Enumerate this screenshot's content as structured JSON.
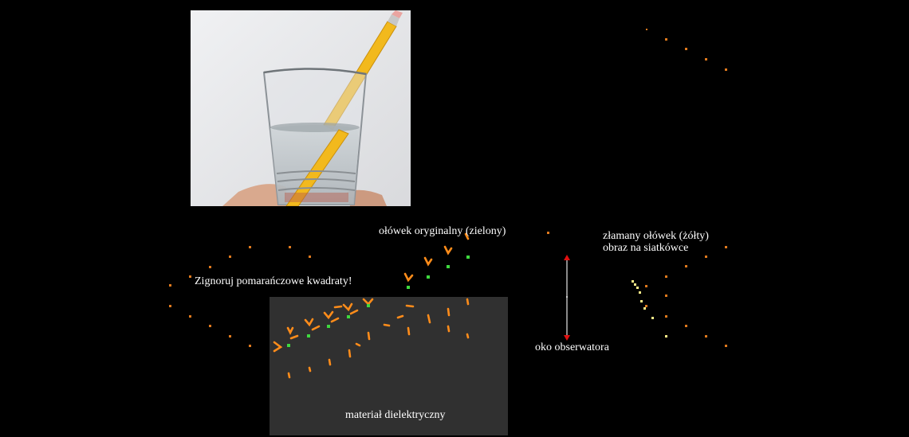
{
  "labels": {
    "original_pencil": "ołówek oryginalny (zielony)",
    "broken_pencil_line1": "złamany ołówek (żółty)",
    "broken_pencil_line2": "obraz na siatkówce",
    "ignore_squares": "Zignoruj pomarańczowe kwadraty!",
    "observer_eye": "oko obserwatora",
    "dielectric": "materiał dielektryczny"
  },
  "colors": {
    "background": "#000000",
    "slab": "#303030",
    "ray_arrow": "#ff8c1a",
    "original_pencil_points": "#3fd93f",
    "image_points": "#ffee88",
    "marker_square": "#e07a1e",
    "eye_axis": "#888888",
    "eye_arrow": "#e01010"
  },
  "photo": {
    "subject": "pencil-in-water-glass",
    "wall": "#e9eaec",
    "pencil": "#f2b91d",
    "water": "#b9c0c4"
  }
}
